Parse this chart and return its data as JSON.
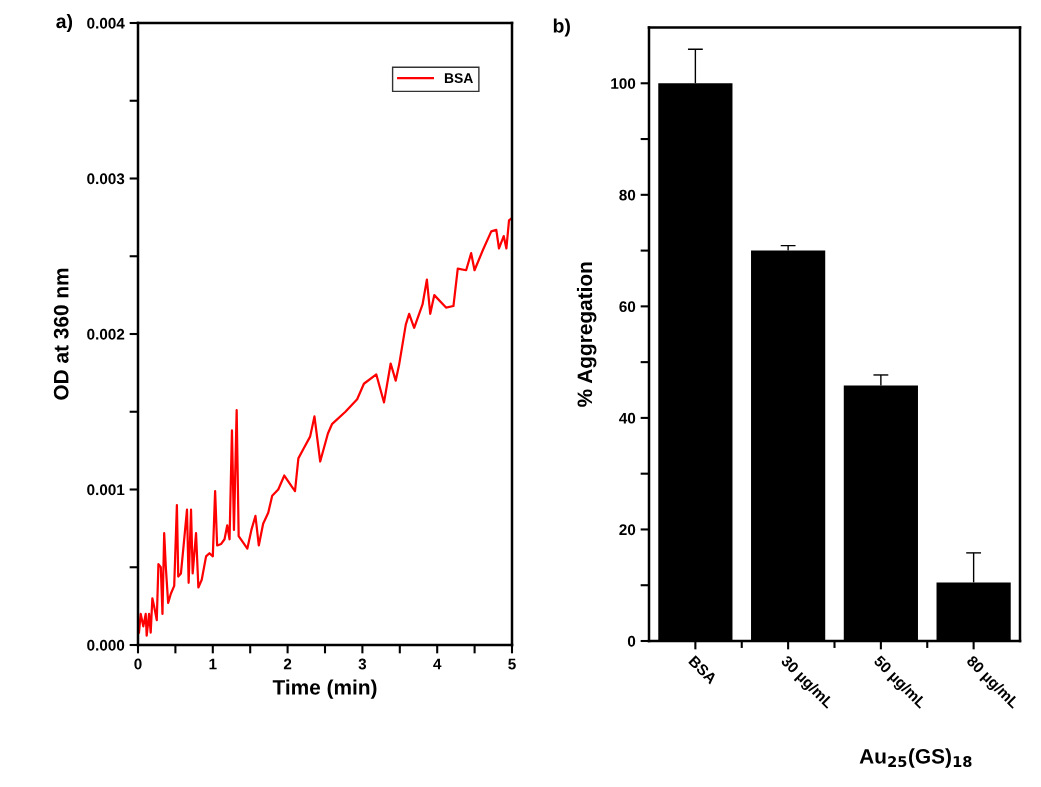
{
  "chart_data": [
    {
      "type": "line",
      "title": "a)",
      "xlabel": "Time (min)",
      "ylabel": "OD at 360 nm",
      "legend": "top right",
      "grid": false,
      "marker": "none",
      "line_style": "solid",
      "xlim": [
        0,
        5
      ],
      "xticks": [
        0,
        {
          "value": 0.5,
          "label": null
        },
        1,
        {
          "value": 1.5,
          "label": null
        },
        2,
        {
          "value": 2.5,
          "label": null
        },
        3,
        {
          "value": 3.5,
          "label": null
        },
        4,
        {
          "value": 4.5,
          "label": null
        },
        5
      ],
      "ylim": [
        0,
        0.004
      ],
      "yticks": [
        {
          "value": 0,
          "label": "0.000"
        },
        {
          "value": 0.0005,
          "label": null
        },
        {
          "value": 0.001,
          "label": "0.001"
        },
        {
          "value": 0.0015,
          "label": null
        },
        {
          "value": 0.002,
          "label": "0.002"
        },
        {
          "value": 0.0025,
          "label": null
        },
        {
          "value": 0.003,
          "label": "0.003"
        },
        {
          "value": 0.0035,
          "label": null
        },
        {
          "value": 0.004,
          "label": "0.004"
        }
      ],
      "series": [
        {
          "name": "BSA",
          "color": "#ff0000",
          "x": [
            0.013,
            0.036,
            0.071,
            0.103,
            0.116,
            0.148,
            0.17,
            0.192,
            0.215,
            0.251,
            0.273,
            0.305,
            0.327,
            0.35,
            0.372,
            0.403,
            0.439,
            0.484,
            0.52,
            0.538,
            0.574,
            0.61,
            0.655,
            0.677,
            0.709,
            0.731,
            0.776,
            0.807,
            0.852,
            0.91,
            0.955,
            1.0,
            1.031,
            1.058,
            1.112,
            1.157,
            1.193,
            1.224,
            1.256,
            1.283,
            1.319,
            1.346,
            1.404,
            1.462,
            1.516,
            1.57,
            1.615,
            1.673,
            1.741,
            1.794,
            1.875,
            1.956,
            2.054,
            2.099,
            2.144,
            2.211,
            2.301,
            2.359,
            2.436,
            2.539,
            2.593,
            2.773,
            2.93,
            3.02,
            3.186,
            3.289,
            3.378,
            3.445,
            3.49,
            3.58,
            3.625,
            3.692,
            3.804,
            3.862,
            3.907,
            3.961,
            4.118,
            4.217,
            4.275,
            4.387,
            4.454,
            4.499,
            4.611,
            4.723,
            4.79,
            4.826,
            4.889,
            4.925,
            4.96,
            4.987
          ],
          "values": [
            8e-05,
            0.0002,
            0.00012,
            0.0002,
            6e-05,
            0.0002,
            8e-05,
            0.0003,
            0.00025,
            0.00016,
            0.00052,
            0.0005,
            0.0002,
            0.00072,
            0.0005,
            0.00027,
            0.00033,
            0.00038,
            0.0009,
            0.00044,
            0.00046,
            0.00064,
            0.00087,
            0.0004,
            0.00087,
            0.00046,
            0.00072,
            0.00037,
            0.00042,
            0.00057,
            0.00059,
            0.00057,
            0.00099,
            0.00064,
            0.00065,
            0.00068,
            0.00077,
            0.00068,
            0.00138,
            0.00074,
            0.00151,
            0.0007,
            0.00066,
            0.00062,
            0.00074,
            0.00083,
            0.00064,
            0.00078,
            0.00085,
            0.00096,
            0.001,
            0.00109,
            0.00102,
            0.00099,
            0.0012,
            0.00126,
            0.00134,
            0.00147,
            0.00118,
            0.00136,
            0.00142,
            0.0015,
            0.00158,
            0.00168,
            0.00174,
            0.00156,
            0.00181,
            0.0017,
            0.0018,
            0.00206,
            0.00213,
            0.00204,
            0.00219,
            0.00235,
            0.00213,
            0.00225,
            0.00217,
            0.00218,
            0.00242,
            0.00241,
            0.00252,
            0.00241,
            0.00254,
            0.00266,
            0.00267,
            0.00255,
            0.00263,
            0.00255,
            0.00273,
            0.00274
          ]
        }
      ]
    },
    {
      "type": "bar",
      "title": "b)",
      "xlabel": "Au$_{25}$(GS)$_{18}$",
      "ylabel": "% Aggregation",
      "grid": false,
      "legend": false,
      "categories": [
        "BSA",
        "30 µg/mL",
        "50 µg/mL",
        "80 µg/mL"
      ],
      "values": [
        100,
        70,
        45.8,
        10.5
      ],
      "color": "#000000",
      "errors": [
        [
          100,
          106.1
        ],
        [
          70,
          70.9
        ],
        [
          45.8,
          47.7
        ],
        [
          10.5,
          15.8
        ]
      ],
      "ylim": [
        0,
        110
      ],
      "yticks": [
        0,
        {
          "value": 10,
          "label": null
        },
        20,
        {
          "value": 30,
          "label": null
        },
        40,
        {
          "value": 50,
          "label": null
        },
        60,
        {
          "value": 70,
          "label": null
        },
        80,
        {
          "value": 90,
          "label": null
        },
        100
      ]
    }
  ]
}
